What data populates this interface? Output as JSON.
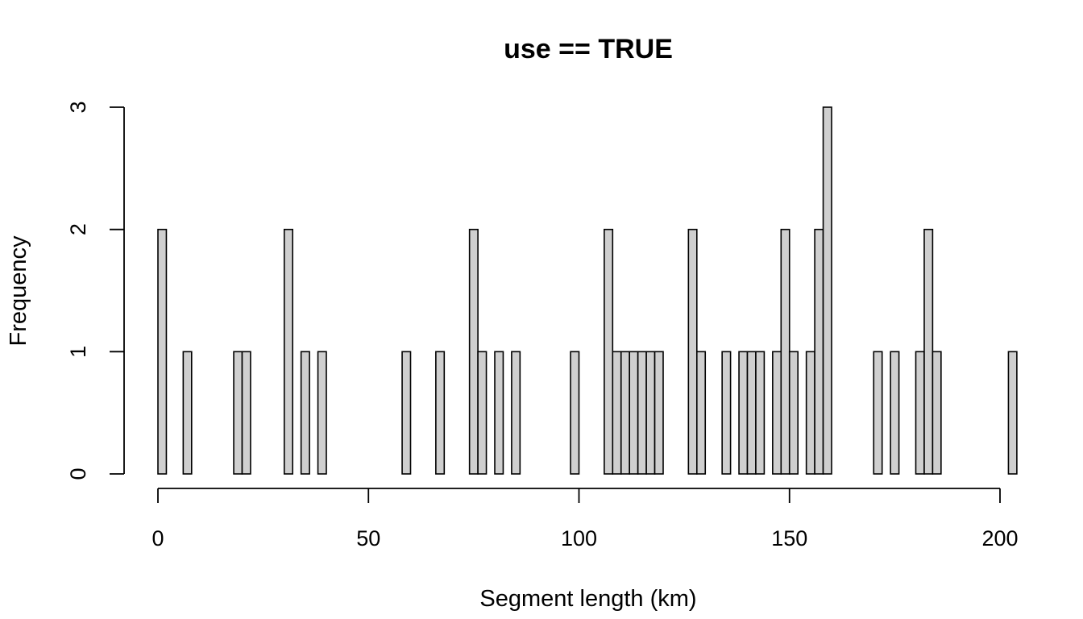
{
  "chart_data": {
    "type": "bar",
    "title": "use == TRUE",
    "xlabel": "Segment length (km)",
    "ylabel": "Frequency",
    "bin_width": 2,
    "xlim": [
      0,
      204
    ],
    "ylim": [
      0,
      3
    ],
    "x_ticks": [
      0,
      50,
      100,
      150,
      200
    ],
    "y_ticks": [
      0,
      1,
      2,
      3
    ],
    "bin_start": 0,
    "values": [
      2,
      0,
      0,
      1,
      0,
      0,
      0,
      0,
      0,
      1,
      1,
      0,
      0,
      0,
      0,
      2,
      0,
      1,
      0,
      1,
      0,
      0,
      0,
      0,
      0,
      0,
      0,
      0,
      0,
      1,
      0,
      0,
      0,
      1,
      0,
      0,
      0,
      2,
      1,
      0,
      1,
      0,
      1,
      0,
      0,
      0,
      0,
      0,
      0,
      1,
      0,
      0,
      0,
      2,
      1,
      1,
      1,
      1,
      1,
      1,
      0,
      0,
      0,
      2,
      1,
      0,
      0,
      1,
      0,
      1,
      1,
      1,
      0,
      1,
      2,
      1,
      0,
      1,
      2,
      3,
      0,
      0,
      0,
      0,
      0,
      1,
      0,
      1,
      0,
      0,
      1,
      2,
      1,
      0,
      0,
      0,
      0,
      0,
      0,
      0,
      0,
      1
    ]
  }
}
